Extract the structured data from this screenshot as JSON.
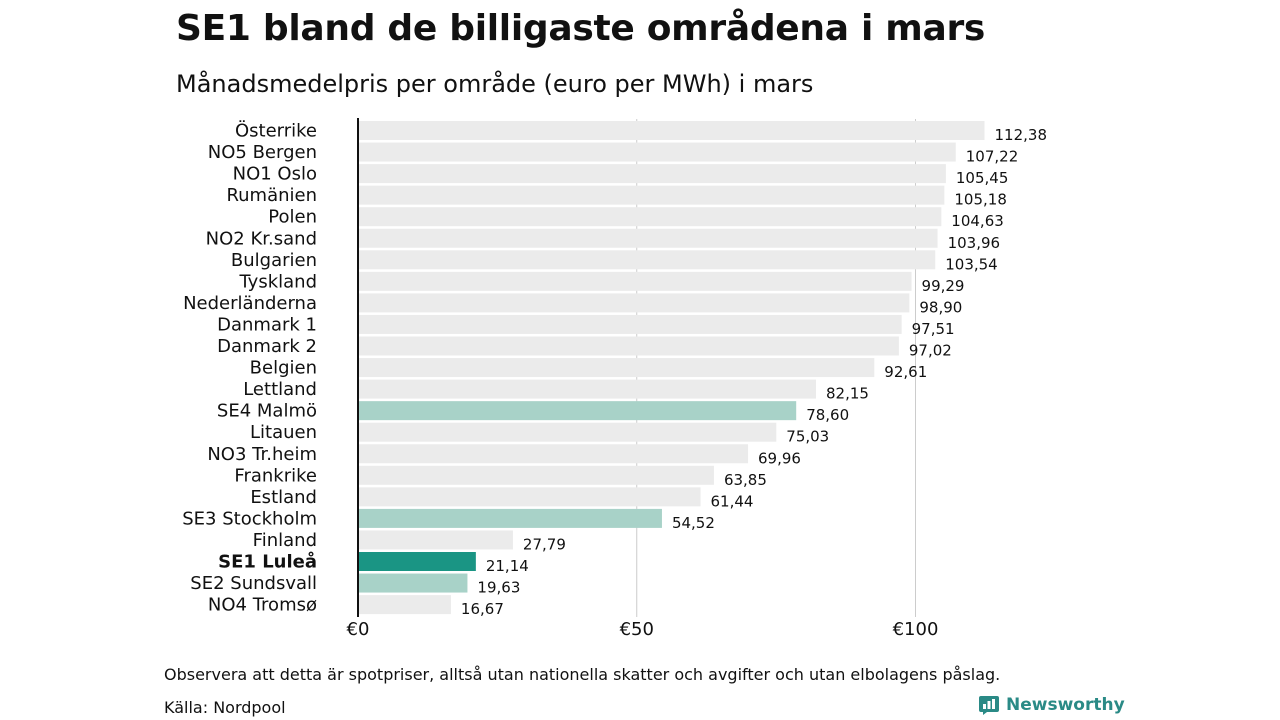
{
  "title": "SE1 bland de billigaste områdena i mars",
  "subtitle": "Månadsmedelpris per område (euro per MWh) i mars",
  "footer": {
    "note": "Observera att detta är spotpriser, alltså utan nationella skatter och avgifter och utan elbolagens påslag.",
    "source": "Källa: Nordpool",
    "brand": "Newsworthy",
    "logo_icon": "newsworthy-logo-icon"
  },
  "colors": {
    "default": "#ebebeb",
    "swedish": "#a8d2c8",
    "focus": "#1a9584",
    "axis": "#111111",
    "grid": "#cccccc",
    "brand": "#2a8a86"
  },
  "chart_data": {
    "type": "bar",
    "orientation": "horizontal",
    "title": "SE1 bland de billigaste områdena i mars",
    "subtitle": "Månadsmedelpris per område (euro per MWh) i mars",
    "xlabel": "",
    "ylabel": "",
    "xlim": [
      0,
      125
    ],
    "xticks": [
      0,
      50,
      100
    ],
    "xtick_labels": [
      "€0",
      "€50",
      "€100"
    ],
    "grid": true,
    "categories": [
      "Österrike",
      "NO5 Bergen",
      "NO1 Oslo",
      "Rumänien",
      "Polen",
      "NO2 Kr.sand",
      "Bulgarien",
      "Tyskland",
      "Nederländerna",
      "Danmark 1",
      "Danmark 2",
      "Belgien",
      "Lettland",
      "SE4 Malmö",
      "Litauen",
      "NO3 Tr.heim",
      "Frankrike",
      "Estland",
      "SE3 Stockholm",
      "Finland",
      "SE1 Luleå",
      "SE2 Sundsvall",
      "NO4 Tromsø"
    ],
    "values": [
      112.38,
      107.22,
      105.45,
      105.18,
      104.63,
      103.96,
      103.54,
      99.29,
      98.9,
      97.51,
      97.02,
      92.61,
      82.15,
      78.6,
      75.03,
      69.96,
      63.85,
      61.44,
      54.52,
      27.79,
      21.14,
      19.63,
      16.67
    ],
    "value_labels": [
      "112,38",
      "107,22",
      "105,45",
      "105,18",
      "104,63",
      "103,96",
      "103,54",
      "99,29",
      "98,90",
      "97,51",
      "97,02",
      "92,61",
      "82,15",
      "78,60",
      "75,03",
      "69,96",
      "63,85",
      "61,44",
      "54,52",
      "27,79",
      "21,14",
      "19,63",
      "16,67"
    ],
    "highlight": [
      "default",
      "default",
      "default",
      "default",
      "default",
      "default",
      "default",
      "default",
      "default",
      "default",
      "default",
      "default",
      "default",
      "swedish",
      "default",
      "default",
      "default",
      "default",
      "swedish",
      "default",
      "focus",
      "swedish",
      "default"
    ],
    "bold": [
      false,
      false,
      false,
      false,
      false,
      false,
      false,
      false,
      false,
      false,
      false,
      false,
      false,
      false,
      false,
      false,
      false,
      false,
      false,
      false,
      true,
      false,
      false
    ]
  }
}
